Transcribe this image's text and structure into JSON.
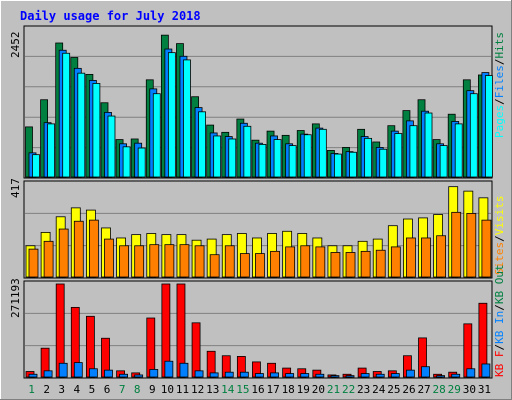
{
  "title": "Daily usage for July 2018",
  "colors": {
    "background": "#c0c0c0",
    "title": "#0000ff",
    "hits": "#008040",
    "files": "#0080ff",
    "pages": "#00ffff",
    "visits": "#ffff00",
    "sites": "#ff8000",
    "kb_in": "#0080ff",
    "kb_out": "#008040",
    "kb_f": "#ff0000"
  },
  "chart_data": [
    {
      "type": "bar",
      "name": "requests",
      "ymax_label": "2452",
      "ylim": [
        0,
        2452
      ],
      "legend": [
        "Pages",
        "Files",
        "Hits"
      ],
      "categories": [
        "1",
        "2",
        "3",
        "4",
        "5",
        "6",
        "7",
        "8",
        "9",
        "10",
        "11",
        "12",
        "13",
        "14",
        "15",
        "16",
        "17",
        "18",
        "19",
        "20",
        "21",
        "22",
        "23",
        "24",
        "25",
        "26",
        "27",
        "28",
        "29",
        "30",
        "31"
      ],
      "series": [
        {
          "name": "Hits",
          "values": [
            830,
            1280,
            2220,
            1980,
            1700,
            1230,
            620,
            630,
            1610,
            2350,
            2210,
            1330,
            860,
            740,
            960,
            610,
            760,
            690,
            770,
            880,
            440,
            490,
            790,
            580,
            850,
            1100,
            1280,
            620,
            1040,
            1610,
            1690
          ]
        },
        {
          "name": "Files",
          "values": [
            400,
            900,
            2100,
            1800,
            1600,
            1070,
            550,
            560,
            1460,
            2120,
            2000,
            1150,
            730,
            670,
            890,
            560,
            680,
            550,
            710,
            810,
            390,
            420,
            670,
            490,
            760,
            930,
            1090,
            550,
            920,
            1430,
            1730
          ]
        },
        {
          "name": "Pages",
          "values": [
            370,
            880,
            2050,
            1720,
            1550,
            1010,
            500,
            480,
            1380,
            2060,
            1940,
            1080,
            680,
            630,
            840,
            540,
            620,
            520,
            700,
            790,
            380,
            410,
            640,
            460,
            720,
            850,
            1060,
            520,
            880,
            1380,
            1680
          ]
        }
      ]
    },
    {
      "type": "bar",
      "name": "visitors",
      "ymax_label": "417",
      "ylim": [
        0,
        417
      ],
      "legend": [
        "Sites",
        "Visits"
      ],
      "categories": [
        "1",
        "2",
        "3",
        "4",
        "5",
        "6",
        "7",
        "8",
        "9",
        "10",
        "11",
        "12",
        "13",
        "14",
        "15",
        "16",
        "17",
        "18",
        "19",
        "20",
        "21",
        "22",
        "23",
        "24",
        "25",
        "26",
        "27",
        "28",
        "29",
        "30",
        "31"
      ],
      "series": [
        {
          "name": "Visits",
          "values": [
            140,
            200,
            270,
            310,
            300,
            220,
            175,
            190,
            195,
            190,
            190,
            165,
            170,
            190,
            195,
            175,
            195,
            205,
            195,
            175,
            140,
            140,
            160,
            170,
            230,
            260,
            265,
            280,
            405,
            385,
            355
          ]
        },
        {
          "name": "Sites",
          "values": [
            125,
            160,
            215,
            250,
            255,
            170,
            140,
            140,
            145,
            145,
            145,
            140,
            100,
            140,
            105,
            105,
            115,
            135,
            140,
            135,
            110,
            110,
            115,
            120,
            135,
            175,
            175,
            185,
            290,
            285,
            255
          ]
        }
      ]
    },
    {
      "type": "bar",
      "name": "kbytes",
      "ymax_label": "271193",
      "ylim": [
        0,
        271193
      ],
      "legend": [
        "KB F",
        "KB In",
        "KB Out"
      ],
      "categories": [
        "1",
        "2",
        "3",
        "4",
        "5",
        "6",
        "7",
        "8",
        "9",
        "10",
        "11",
        "12",
        "13",
        "14",
        "15",
        "16",
        "17",
        "18",
        "19",
        "20",
        "21",
        "22",
        "23",
        "24",
        "25",
        "26",
        "27",
        "28",
        "29",
        "30",
        "31"
      ],
      "series": [
        {
          "name": "KB F",
          "values": [
            16000,
            84000,
            271193,
            203000,
            177000,
            113000,
            18000,
            12000,
            172000,
            271193,
            271193,
            158000,
            75000,
            62000,
            60000,
            44000,
            40000,
            26000,
            24000,
            20000,
            6000,
            8000,
            26000,
            16000,
            18000,
            62000,
            114000,
            8000,
            14000,
            155000,
            215000
          ]
        },
        {
          "name": "KB In",
          "values": [
            8000,
            18000,
            40000,
            42000,
            24000,
            20000,
            8000,
            6000,
            22000,
            46000,
            40000,
            18000,
            12000,
            14000,
            14000,
            10000,
            12000,
            10000,
            10000,
            8000,
            4000,
            4000,
            10000,
            8000,
            10000,
            20000,
            30000,
            4000,
            8000,
            24000,
            38000
          ]
        }
      ]
    }
  ]
}
